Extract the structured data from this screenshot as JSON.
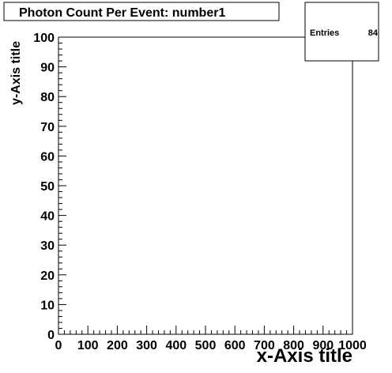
{
  "chart_data": {
    "type": "scatter",
    "title": "Photon Count Per Event: number1",
    "xlabel": "x-Axis title",
    "ylabel": "y-Axis title",
    "xlim": [
      0,
      1000
    ],
    "ylim": [
      0,
      100
    ],
    "x_ticks": [
      "0",
      "100",
      "200",
      "300",
      "400",
      "500",
      "600",
      "700",
      "800",
      "900",
      "1000"
    ],
    "y_ticks": [
      "0",
      "10",
      "20",
      "30",
      "40",
      "50",
      "60",
      "70",
      "80",
      "90",
      "100"
    ],
    "stats": {
      "entries_label": "Entries",
      "entries_value": "84"
    },
    "points": [],
    "grid": false
  }
}
